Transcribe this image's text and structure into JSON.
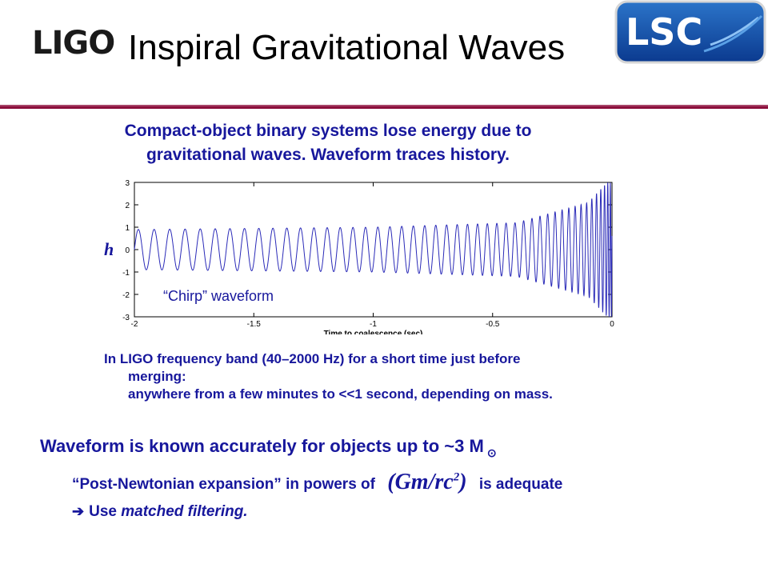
{
  "header": {
    "logo_left": "LIGO",
    "title": "Inspiral Gravitational Waves",
    "logo_right": "LSC",
    "divider_color": "#8b0f3c"
  },
  "intro": {
    "line1": "Compact-object binary systems lose energy due to",
    "line2": "gravitational waves.  Waveform traces history."
  },
  "chart_data": {
    "type": "line",
    "title": "",
    "xlabel": "Time to coalescence (sec)",
    "ylabel": "h",
    "xlim": [
      -2,
      0
    ],
    "ylim": [
      -3,
      3
    ],
    "xticks": [
      "-2",
      "-1.5",
      "-1",
      "-0.5",
      "0"
    ],
    "yticks": [
      "-3",
      "-2",
      "-1",
      "0",
      "1",
      "2",
      "3"
    ],
    "annotation": "“Chirp” waveform",
    "series": [
      {
        "color": "#2a2ab8",
        "description_points": [
          [
            -2.0,
            0.0
          ],
          [
            -1.0,
            0.0
          ],
          [
            -0.3,
            0.0
          ],
          [
            0.0,
            0.0
          ]
        ],
        "amplitude_at": [
          [
            -1.95,
            0.9
          ],
          [
            -1.0,
            1.0
          ],
          [
            -0.4,
            1.2
          ],
          [
            -0.1,
            2.1
          ],
          [
            -0.02,
            3.0
          ]
        ]
      }
    ]
  },
  "band": {
    "line1": "In LIGO frequency band (40–2000 Hz) for a short time just before",
    "line2": "merging:",
    "line3": "anywhere from a few minutes to <<1 second, depending on mass."
  },
  "known": {
    "text": "Waveform is known accurately for objects up to ~3 M",
    "sun": "⊙"
  },
  "pn": {
    "pre": "“Post-Newtonian expansion” in powers of",
    "formula_base": "(Gm/rc",
    "formula_exp": "2",
    "formula_close": ")",
    "post": "is adequate"
  },
  "mf": {
    "arrow": "➔",
    "pre": "Use ",
    "emph": "matched filtering."
  }
}
